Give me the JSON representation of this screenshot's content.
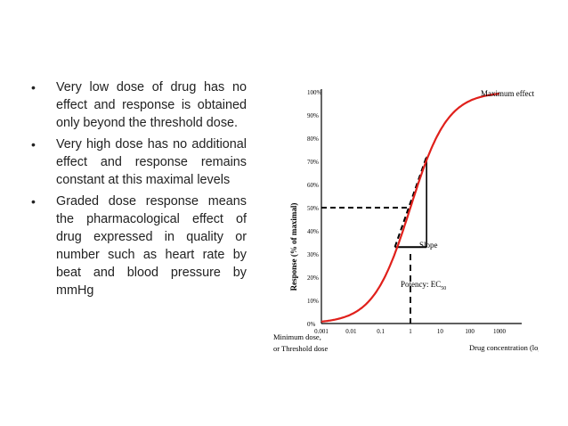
{
  "bullets": [
    "Very low dose of drug has no effect and response is obtained only beyond the threshold dose.",
    "Very high dose has no additional effect and response remains constant at this maximal levels",
    "Graded dose response means the pharmacological effect of drug expressed in quality or number such as heart rate by beat and blood pressure by mmHg"
  ],
  "bullet_glyph": "•",
  "chart_data": {
    "type": "line",
    "xlabel": "Drug concentration (log)",
    "ylabel": "Response (% of maximal)",
    "x_scale": "log",
    "x_ticks": [
      0.001,
      0.01,
      0.1,
      1,
      10,
      100,
      1000
    ],
    "x_tick_labels": [
      "0.001",
      "0.01",
      "0.1",
      "1",
      "10",
      "100",
      "1000"
    ],
    "y_ticks": [
      0,
      10,
      20,
      30,
      40,
      50,
      60,
      70,
      80,
      90,
      100
    ],
    "y_tick_labels": [
      "0%",
      "10%",
      "20%",
      "30%",
      "40%",
      "50%",
      "60%",
      "70%",
      "80%",
      "90%",
      "100%"
    ],
    "xlim": [
      0.001,
      1000
    ],
    "ylim": [
      0,
      100
    ],
    "series": [
      {
        "x": [
          0.001,
          0.002,
          0.005,
          0.01,
          0.03,
          0.1,
          0.3,
          1,
          3,
          10,
          30,
          100,
          300,
          1000
        ],
        "y": [
          0,
          1,
          3,
          6,
          15,
          33,
          50,
          50,
          70,
          82,
          91,
          96,
          99,
          100
        ],
        "color": "#e0201b"
      }
    ],
    "annotations": {
      "maximum_effect": "Maximum effect",
      "slope": "Slope",
      "potency": "Potency: EC",
      "potency_sub": "50",
      "minimum_dose": "Minimum dose,",
      "threshold_dose": "or Threshold dose"
    },
    "grid": false,
    "legend": "none"
  }
}
